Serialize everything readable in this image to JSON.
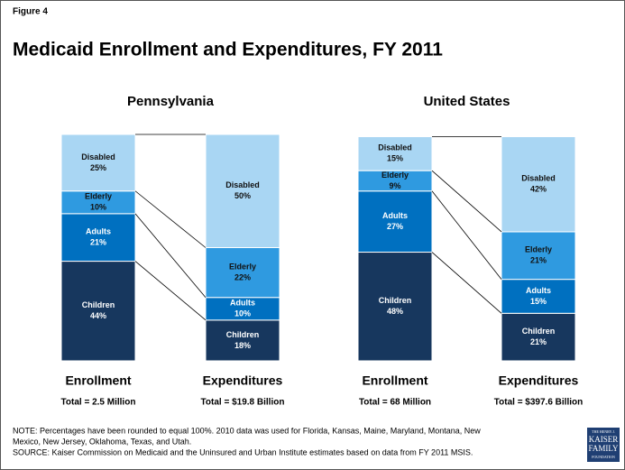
{
  "figure_label": "Figure 4",
  "title": "Medicaid Enrollment and Expenditures, FY 2011",
  "note": [
    "NOTE: Percentages have been rounded to equal 100%. 2010 data was used for Florida, Kansas, Maine, Maryland, Montana, New",
    "Mexico, New Jersey, Oklahoma, Texas, and Utah."
  ],
  "source": "SOURCE: Kaiser Commission on Medicaid and the Uninsured and Urban Institute estimates based on data from FY 2011 MSIS.",
  "logo": [
    "THE HENRY J.",
    "KAISER",
    "FAMILY",
    "FOUNDATION"
  ],
  "chart_data": [
    {
      "type": "stacked_bar",
      "title": "Pennsylvania",
      "categories": [
        "Enrollment",
        "Expenditures"
      ],
      "category_totals": [
        "Total = 2.5 Million",
        "Total = $19.8 Billion"
      ],
      "ylim": [
        0,
        100
      ],
      "series": [
        {
          "name": "Children",
          "color": "#17375e",
          "label_color": "#ffffff",
          "values": [
            44,
            18
          ],
          "value_labels": [
            "44%",
            "18%"
          ]
        },
        {
          "name": "Adults",
          "color": "#0070c0",
          "label_color": "#ffffff",
          "values": [
            21,
            10
          ],
          "value_labels": [
            "21%",
            "10%"
          ]
        },
        {
          "name": "Elderly",
          "color": "#2f9ae0",
          "label_color": "#111111",
          "values": [
            10,
            22
          ],
          "value_labels": [
            "10%",
            "22%"
          ]
        },
        {
          "name": "Disabled",
          "color": "#a9d6f3",
          "label_color": "#111111",
          "values": [
            25,
            50
          ],
          "value_labels": [
            "25%",
            "50%"
          ]
        }
      ]
    },
    {
      "type": "stacked_bar",
      "title": "United States",
      "categories": [
        "Enrollment",
        "Expenditures"
      ],
      "category_totals": [
        "Total = 68 Million",
        "Total = $397.6 Billion"
      ],
      "ylim": [
        0,
        100
      ],
      "series": [
        {
          "name": "Children",
          "color": "#17375e",
          "label_color": "#ffffff",
          "values": [
            48,
            21
          ],
          "value_labels": [
            "48%",
            "21%"
          ]
        },
        {
          "name": "Adults",
          "color": "#0070c0",
          "label_color": "#ffffff",
          "values": [
            27,
            15
          ],
          "value_labels": [
            "27%",
            "15%"
          ]
        },
        {
          "name": "Elderly",
          "color": "#2f9ae0",
          "label_color": "#111111",
          "values": [
            9,
            21
          ],
          "value_labels": [
            "9%",
            "21%"
          ]
        },
        {
          "name": "Disabled",
          "color": "#a9d6f3",
          "label_color": "#111111",
          "values": [
            15,
            42
          ],
          "value_labels": [
            "15%",
            "42%"
          ]
        }
      ]
    }
  ]
}
